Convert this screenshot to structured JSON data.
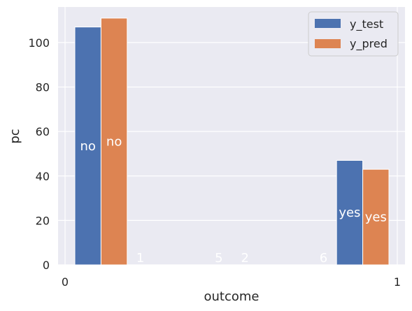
{
  "chart_data": {
    "type": "bar",
    "xlabel": "outcome",
    "ylabel": "pc",
    "x_ticks": [
      "0",
      "1"
    ],
    "y_ticks": [
      "0",
      "20",
      "40",
      "60",
      "80",
      "100"
    ],
    "ylim": [
      0,
      116
    ],
    "grid": true,
    "legend_position": "top-right",
    "categories": [
      "no",
      "1",
      "5",
      "2",
      "6",
      "yes"
    ],
    "series": [
      {
        "name": "y_test",
        "color": "#4c72b0",
        "values": [
          107,
          0,
          0,
          0,
          0,
          47
        ],
        "labels": [
          "no",
          "1",
          "",
          "2",
          "",
          "yes"
        ]
      },
      {
        "name": "y_pred",
        "color": "#dd8452",
        "values": [
          111,
          0,
          0,
          0,
          0,
          43
        ],
        "labels": [
          "no",
          "",
          "5",
          "",
          "6",
          "yes"
        ]
      }
    ]
  }
}
